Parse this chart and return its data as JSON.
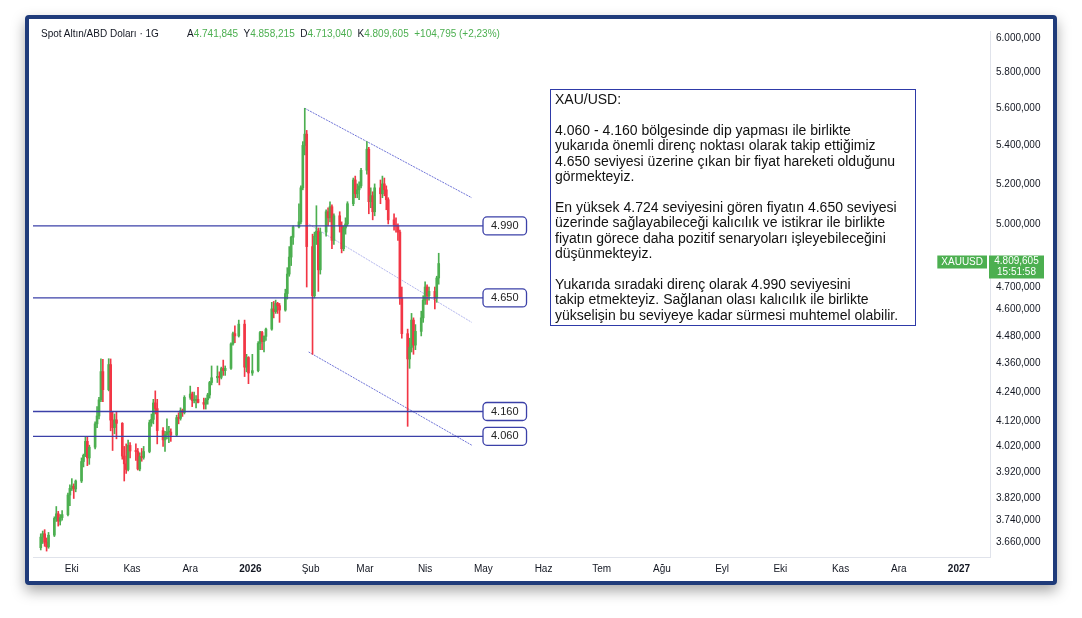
{
  "chart_data": {
    "type": "candlestick",
    "title": "Spot Altın/ABD Doları · 1G",
    "subtitle": "A4.741,845  Y4.858,215  D4.713,040  K4.809,605  +104,795 (+2,23%)",
    "annotations": [
      "XAU/USD:",
      "4.060 - 4.160 bölgesinde dip yapması ile birlikte\nyukarıda önemli direnç noktası olarak takip ettiğimiz\n4.650 seviyesi üzerine çıkan bir fiyat hareketi olduğunu\ngörmekteyiz.",
      "En yüksek 4.724 seviyesini gören fiyatın 4.650 seviyesi\nüzerinde sağlayabileceği kalıcılık ve istikrar ile birlikte\nfiyatın görece daha pozitif senaryoları işleyebileceğini\ndüşünmekteyiz.",
      "Yukarıda sıradaki direnç olarak 4.990 seviyesini\ntakip etmekteyiz. Sağlanan olası kalıcılık ile birlikte\nyükselişin bu seviyeye kadar sürmesi muhtemel olabilir.",
      "XAUUSD",
      "4.809,605",
      "15:51:58"
    ],
    "x": [
      "2025-09-15",
      "2025-09-16",
      "2025-09-17",
      "2025-09-18",
      "2025-09-19",
      "2025-09-22",
      "2025-09-23",
      "2025-09-24",
      "2025-09-25",
      "2025-09-26",
      "2025-09-29",
      "2025-09-30",
      "2025-10-01",
      "2025-10-02",
      "2025-10-03",
      "2025-10-06",
      "2025-10-07",
      "2025-10-08",
      "2025-10-09",
      "2025-10-10",
      "2025-10-13",
      "2025-10-14",
      "2025-10-15",
      "2025-10-16",
      "2025-10-17",
      "2025-10-20",
      "2025-10-21",
      "2025-10-22",
      "2025-10-23",
      "2025-10-24",
      "2025-10-27",
      "2025-10-28",
      "2025-10-29",
      "2025-10-30",
      "2025-10-31",
      "2025-11-03",
      "2025-11-04",
      "2025-11-05",
      "2025-11-06",
      "2025-11-07",
      "2025-11-10",
      "2025-11-11",
      "2025-11-12",
      "2025-11-13",
      "2025-11-14",
      "2025-11-17",
      "2025-11-18",
      "2025-11-19",
      "2025-11-20",
      "2025-11-21",
      "2025-11-24",
      "2025-11-25",
      "2025-11-26",
      "2025-11-27",
      "2025-11-28",
      "2025-12-01",
      "2025-12-02",
      "2025-12-03",
      "2025-12-04",
      "2025-12-05",
      "2025-12-08",
      "2025-12-09",
      "2025-12-10",
      "2025-12-11",
      "2025-12-12",
      "2025-12-15",
      "2025-12-16",
      "2025-12-17",
      "2025-12-18",
      "2025-12-19",
      "2025-12-22",
      "2025-12-23",
      "2025-12-24",
      "2025-12-26",
      "2025-12-29",
      "2025-12-30",
      "2025-12-31",
      "2026-01-02",
      "2026-01-05",
      "2026-01-06",
      "2026-01-07",
      "2026-01-08",
      "2026-01-09",
      "2026-01-12",
      "2026-01-13",
      "2026-01-14",
      "2026-01-15",
      "2026-01-16",
      "2026-01-19",
      "2026-01-20",
      "2026-01-21",
      "2026-01-22",
      "2026-01-23",
      "2026-01-26",
      "2026-01-27",
      "2026-01-28",
      "2026-01-29",
      "2026-01-30",
      "2026-02-02",
      "2026-02-03",
      "2026-02-04",
      "2026-02-05",
      "2026-02-06",
      "2026-02-09",
      "2026-02-10",
      "2026-02-11",
      "2026-02-12",
      "2026-02-13",
      "2026-02-16",
      "2026-02-17",
      "2026-02-18",
      "2026-02-19",
      "2026-02-20",
      "2026-02-23",
      "2026-02-24",
      "2026-02-25",
      "2026-02-26",
      "2026-02-27",
      "2026-03-02",
      "2026-03-03",
      "2026-03-04",
      "2026-03-05",
      "2026-03-06",
      "2026-03-09",
      "2026-03-10",
      "2026-03-11",
      "2026-03-12",
      "2026-03-13",
      "2026-03-16",
      "2026-03-17",
      "2026-03-18",
      "2026-03-19",
      "2026-03-20",
      "2026-03-23",
      "2026-03-24",
      "2026-03-25",
      "2026-03-26",
      "2026-03-27",
      "2026-03-30",
      "2026-03-31",
      "2026-04-01",
      "2026-04-02",
      "2026-04-03",
      "2026-04-06",
      "2026-04-07",
      "2026-04-08"
    ],
    "ohlc": [
      [
        3640,
        3690,
        3632,
        3678
      ],
      [
        3678,
        3700,
        3655,
        3690
      ],
      [
        3690,
        3705,
        3645,
        3660
      ],
      [
        3660,
        3675,
        3628,
        3643
      ],
      [
        3643,
        3695,
        3638,
        3685
      ],
      [
        3685,
        3752,
        3680,
        3746
      ],
      [
        3746,
        3790,
        3735,
        3763
      ],
      [
        3763,
        3772,
        3718,
        3736
      ],
      [
        3736,
        3760,
        3722,
        3749
      ],
      [
        3749,
        3775,
        3740,
        3760
      ],
      [
        3760,
        3840,
        3755,
        3833
      ],
      [
        3833,
        3871,
        3793,
        3858
      ],
      [
        3858,
        3895,
        3850,
        3866
      ],
      [
        3866,
        3875,
        3820,
        3856
      ],
      [
        3856,
        3890,
        3845,
        3886
      ],
      [
        3886,
        3975,
        3880,
        3961
      ],
      [
        3961,
        3990,
        3940,
        3985
      ],
      [
        3985,
        4060,
        3980,
        4040
      ],
      [
        4040,
        4058,
        3945,
        3975
      ],
      [
        3975,
        4025,
        3950,
        4017
      ],
      [
        4017,
        4118,
        4010,
        4110
      ],
      [
        4110,
        4180,
        4095,
        4142
      ],
      [
        4142,
        4218,
        4130,
        4208
      ],
      [
        4208,
        4380,
        4200,
        4326
      ],
      [
        4326,
        4378,
        4200,
        4250
      ],
      [
        4250,
        4381,
        4245,
        4356
      ],
      [
        4356,
        4380,
        4082,
        4125
      ],
      [
        4125,
        4160,
        4004,
        4095
      ],
      [
        4095,
        4150,
        4070,
        4126
      ],
      [
        4126,
        4160,
        4050,
        4112
      ],
      [
        4112,
        4115,
        3970,
        3982
      ],
      [
        3982,
        4020,
        3886,
        3952
      ],
      [
        3952,
        4030,
        3915,
        3930
      ],
      [
        3930,
        4045,
        3925,
        4024
      ],
      [
        4024,
        4035,
        3975,
        4002
      ],
      [
        4002,
        4030,
        3965,
        4000
      ],
      [
        4000,
        4012,
        3928,
        3932
      ],
      [
        3932,
        3995,
        3925,
        3980
      ],
      [
        3980,
        4012,
        3962,
        3977
      ],
      [
        3977,
        4020,
        3970,
        4000
      ],
      [
        4000,
        4125,
        3995,
        4115
      ],
      [
        4115,
        4150,
        4100,
        4128
      ],
      [
        4128,
        4210,
        4110,
        4195
      ],
      [
        4195,
        4245,
        4150,
        4172
      ],
      [
        4172,
        4210,
        4030,
        4083
      ],
      [
        4083,
        4095,
        4020,
        4046
      ],
      [
        4046,
        4080,
        4000,
        4067
      ],
      [
        4067,
        4130,
        4050,
        4077
      ],
      [
        4077,
        4100,
        4035,
        4077
      ],
      [
        4077,
        4090,
        4040,
        4065
      ],
      [
        4065,
        4145,
        4060,
        4135
      ],
      [
        4135,
        4155,
        4110,
        4132
      ],
      [
        4132,
        4175,
        4125,
        4163
      ],
      [
        4163,
        4170,
        4140,
        4156
      ],
      [
        4156,
        4225,
        4150,
        4218
      ],
      [
        4218,
        4265,
        4210,
        4232
      ],
      [
        4232,
        4240,
        4180,
        4205
      ],
      [
        4205,
        4240,
        4195,
        4205
      ],
      [
        4205,
        4225,
        4175,
        4210
      ],
      [
        4210,
        4260,
        4195,
        4197
      ],
      [
        4197,
        4215,
        4170,
        4190
      ],
      [
        4190,
        4215,
        4170,
        4208
      ],
      [
        4208,
        4235,
        4190,
        4228
      ],
      [
        4228,
        4285,
        4215,
        4280
      ],
      [
        4280,
        4350,
        4270,
        4300
      ],
      [
        4300,
        4350,
        4280,
        4306
      ],
      [
        4306,
        4325,
        4270,
        4302
      ],
      [
        4302,
        4345,
        4295,
        4339
      ],
      [
        4339,
        4375,
        4310,
        4330
      ],
      [
        4330,
        4350,
        4310,
        4340
      ],
      [
        4340,
        4450,
        4335,
        4445
      ],
      [
        4445,
        4497,
        4440,
        4490
      ],
      [
        4490,
        4525,
        4450,
        4480
      ],
      [
        4480,
        4550,
        4475,
        4532
      ],
      [
        4532,
        4550,
        4305,
        4345
      ],
      [
        4345,
        4400,
        4325,
        4386
      ],
      [
        4386,
        4390,
        4275,
        4320
      ],
      [
        4320,
        4400,
        4310,
        4330
      ],
      [
        4330,
        4455,
        4325,
        4447
      ],
      [
        4447,
        4500,
        4420,
        4495
      ],
      [
        4495,
        4500,
        4420,
        4455
      ],
      [
        4455,
        4480,
        4410,
        4478
      ],
      [
        4478,
        4515,
        4460,
        4510
      ],
      [
        4510,
        4630,
        4505,
        4600
      ],
      [
        4600,
        4634,
        4560,
        4588
      ],
      [
        4588,
        4640,
        4580,
        4625
      ],
      [
        4625,
        4630,
        4580,
        4615
      ],
      [
        4615,
        4625,
        4540,
        4595
      ],
      [
        4595,
        4690,
        4590,
        4670
      ],
      [
        4670,
        4790,
        4645,
        4760
      ],
      [
        4760,
        4890,
        4750,
        4840
      ],
      [
        4840,
        4940,
        4800,
        4935
      ],
      [
        4935,
        4990,
        4900,
        4985
      ],
      [
        4985,
        5100,
        4980,
        5010
      ],
      [
        5010,
        5190,
        5000,
        5180
      ],
      [
        5180,
        5420,
        5170,
        5400
      ],
      [
        5400,
        5600,
        5350,
        5460
      ],
      [
        5460,
        5480,
        4700,
        4890
      ],
      [
        4890,
        4950,
        4400,
        4660
      ],
      [
        4660,
        4960,
        4650,
        4940
      ],
      [
        4940,
        5090,
        4900,
        4965
      ],
      [
        4965,
        4980,
        4680,
        4780
      ],
      [
        4780,
        4980,
        4760,
        4960
      ],
      [
        4960,
        5070,
        4940,
        5060
      ],
      [
        5060,
        5080,
        4990,
        5030
      ],
      [
        5030,
        5110,
        5010,
        5085
      ],
      [
        5085,
        5095,
        4880,
        4920
      ],
      [
        4920,
        5050,
        4900,
        5040
      ],
      [
        5040,
        5060,
        4960,
        4990
      ],
      [
        4990,
        5010,
        4860,
        4880
      ],
      [
        4880,
        4990,
        4870,
        4980
      ],
      [
        4980,
        5030,
        4950,
        5000
      ],
      [
        5000,
        5110,
        4990,
        5100
      ],
      [
        5100,
        5230,
        5090,
        5220
      ],
      [
        5220,
        5240,
        5130,
        5150
      ],
      [
        5150,
        5200,
        5130,
        5170
      ],
      [
        5170,
        5210,
        5120,
        5190
      ],
      [
        5190,
        5280,
        5180,
        5270
      ],
      [
        5270,
        5420,
        5250,
        5380
      ],
      [
        5380,
        5390,
        5050,
        5110
      ],
      [
        5110,
        5180,
        5080,
        5140
      ],
      [
        5140,
        5160,
        5020,
        5060
      ],
      [
        5060,
        5200,
        5040,
        5180
      ],
      [
        5180,
        5220,
        5100,
        5150
      ],
      [
        5150,
        5240,
        5130,
        5200
      ],
      [
        5200,
        5230,
        5140,
        5170
      ],
      [
        5170,
        5190,
        5070,
        5120
      ],
      [
        5120,
        5130,
        5000,
        5020
      ],
      [
        5020,
        5050,
        4970,
        4995
      ],
      [
        4995,
        5030,
        4960,
        4990
      ],
      [
        4990,
        5000,
        4920,
        4960
      ],
      [
        4960,
        4970,
        4620,
        4650
      ],
      [
        4650,
        4700,
        4470,
        4490
      ],
      [
        4490,
        4510,
        4100,
        4380
      ],
      [
        4380,
        4470,
        4340,
        4430
      ],
      [
        4430,
        4580,
        4410,
        4550
      ],
      [
        4550,
        4560,
        4400,
        4440
      ],
      [
        4440,
        4530,
        4420,
        4500
      ],
      [
        4500,
        4590,
        4480,
        4560
      ],
      [
        4560,
        4660,
        4540,
        4640
      ],
      [
        4640,
        4724,
        4620,
        4700
      ],
      [
        4700,
        4710,
        4620,
        4660
      ],
      [
        4660,
        4700,
        4640,
        4680
      ],
      [
        4680,
        4700,
        4600,
        4650
      ],
      [
        4650,
        4750,
        4630,
        4741.845
      ],
      [
        4741.845,
        4858.215,
        4713.04,
        4809.605
      ]
    ],
    "colors": [
      "#4caf50",
      "#4caf50",
      "#f23645",
      "#f23645",
      "#4caf50",
      "#4caf50",
      "#4caf50",
      "#f23645",
      "#4caf50",
      "#4caf50",
      "#4caf50",
      "#4caf50",
      "#4caf50",
      "#f23645",
      "#4caf50",
      "#4caf50",
      "#4caf50",
      "#4caf50",
      "#f23645",
      "#4caf50",
      "#4caf50",
      "#4caf50",
      "#4caf50",
      "#4caf50",
      "#f23645",
      "#4caf50",
      "#f23645",
      "#f23645",
      "#4caf50",
      "#f23645",
      "#f23645",
      "#f23645",
      "#f23645",
      "#4caf50",
      "#f23645",
      "#f23645",
      "#f23645",
      "#4caf50",
      "#f23645",
      "#4caf50",
      "#4caf50",
      "#4caf50",
      "#4caf50",
      "#f23645",
      "#f23645",
      "#f23645",
      "#4caf50",
      "#4caf50",
      "#4caf50",
      "#f23645",
      "#4caf50",
      "#f23645",
      "#4caf50",
      "#f23645",
      "#4caf50",
      "#4caf50",
      "#f23645",
      "#4caf50",
      "#4caf50",
      "#f23645",
      "#f23645",
      "#4caf50",
      "#4caf50",
      "#4caf50",
      "#4caf50",
      "#4caf50",
      "#f23645",
      "#4caf50",
      "#f23645",
      "#4caf50",
      "#4caf50",
      "#4caf50",
      "#f23645",
      "#4caf50",
      "#f23645",
      "#4caf50",
      "#f23645",
      "#4caf50",
      "#4caf50",
      "#4caf50",
      "#f23645",
      "#4caf50",
      "#4caf50",
      "#4caf50",
      "#f23645",
      "#4caf50",
      "#f23645",
      "#f23645",
      "#4caf50",
      "#4caf50",
      "#4caf50",
      "#4caf50",
      "#4caf50",
      "#4caf50",
      "#4caf50",
      "#4caf50",
      "#4caf50",
      "#f23645",
      "#f23645",
      "#4caf50",
      "#4caf50",
      "#f23645",
      "#4caf50",
      "#4caf50",
      "#f23645",
      "#4caf50",
      "#f23645",
      "#4caf50",
      "#f23645",
      "#f23645",
      "#4caf50",
      "#4caf50",
      "#4caf50",
      "#4caf50",
      "#f23645",
      "#4caf50",
      "#4caf50",
      "#4caf50",
      "#4caf50",
      "#f23645",
      "#4caf50",
      "#f23645",
      "#4caf50",
      "#f23645",
      "#4caf50",
      "#f23645",
      "#f23645",
      "#f23645",
      "#f23645",
      "#f23645",
      "#f23645",
      "#f23645",
      "#f23645",
      "#f23645",
      "#4caf50",
      "#4caf50",
      "#f23645",
      "#4caf50",
      "#4caf50",
      "#4caf50",
      "#4caf50",
      "#f23645",
      "#4caf50",
      "#f23645",
      "#4caf50",
      "#4caf50"
    ],
    "series": [
      {
        "type": "line",
        "x": [
          "2026-01-29",
          "2026-04-25"
        ],
        "values": [
          5600,
          5130
        ],
        "color": "#6f74d8",
        "line_style": "dotted"
      },
      {
        "type": "line",
        "x": [
          "2026-01-30",
          "2026-04-25"
        ],
        "values": [
          5005,
          4540
        ],
        "color": "#b4b7ee",
        "line_style": "dotted"
      },
      {
        "type": "line",
        "x": [
          "2026-01-31",
          "2026-04-25"
        ],
        "values": [
          4410,
          4025
        ],
        "color": "#6f74d8",
        "line_style": "dotted"
      }
    ],
    "ref_lines": [
      {
        "axis": "y",
        "value": 4990,
        "label": "4.990",
        "color": "#3b40a8"
      },
      {
        "axis": "y",
        "value": 4650,
        "label": "4.650",
        "color": "#3b40a8"
      },
      {
        "axis": "y",
        "value": 4160,
        "label": "4.160",
        "color": "#3b40a8"
      },
      {
        "axis": "y",
        "value": 4060,
        "label": "4.060",
        "color": "#3b40a8"
      }
    ],
    "xlim": [
      "2025-09-11",
      "2027-01-17"
    ],
    "xticks": [
      {
        "value": "2025-10-01",
        "label": "Eki"
      },
      {
        "value": "2025-11-01",
        "label": "Kas"
      },
      {
        "value": "2025-12-01",
        "label": "Ara"
      },
      {
        "value": "2026-01-01",
        "label": "2026"
      },
      {
        "value": "2026-02-01",
        "label": "Şub"
      },
      {
        "value": "2026-03-01",
        "label": "Mar"
      },
      {
        "value": "2026-04-01",
        "label": "Nis"
      },
      {
        "value": "2026-05-01",
        "label": "May"
      },
      {
        "value": "2026-06-01",
        "label": "Haz"
      },
      {
        "value": "2026-07-01",
        "label": "Tem"
      },
      {
        "value": "2026-08-01",
        "label": "Ağu"
      },
      {
        "value": "2026-09-01",
        "label": "Eyl"
      },
      {
        "value": "2026-10-01",
        "label": "Eki"
      },
      {
        "value": "2026-11-01",
        "label": "Kas"
      },
      {
        "value": "2026-12-01",
        "label": "Ara"
      },
      {
        "value": "2027-01-01",
        "label": "2027"
      }
    ],
    "ylim": [
      3607,
      6041
    ],
    "yticks": [
      {
        "value": 3660,
        "label": "3.660,000"
      },
      {
        "value": 3740,
        "label": "3.740,000"
      },
      {
        "value": 3820,
        "label": "3.820,000"
      },
      {
        "value": 3920,
        "label": "3.920,000"
      },
      {
        "value": 4020,
        "label": "4.020,000"
      },
      {
        "value": 4120,
        "label": "4.120,000"
      },
      {
        "value": 4240,
        "label": "4.240,000"
      },
      {
        "value": 4360,
        "label": "4.360,000"
      },
      {
        "value": 4480,
        "label": "4.480,000"
      },
      {
        "value": 4600,
        "label": "4.600,000"
      },
      {
        "value": 4700,
        "label": "4.700,000"
      },
      {
        "value": 5000,
        "label": "5.000,000"
      },
      {
        "value": 5200,
        "label": "5.200,000"
      },
      {
        "value": 5400,
        "label": "5.400,000"
      },
      {
        "value": 5600,
        "label": "5.600,000"
      },
      {
        "value": 5800,
        "label": "5.800,000"
      },
      {
        "value": 6000,
        "label": "6.000,000"
      }
    ],
    "log": true,
    "grid": false,
    "legend": false
  }
}
